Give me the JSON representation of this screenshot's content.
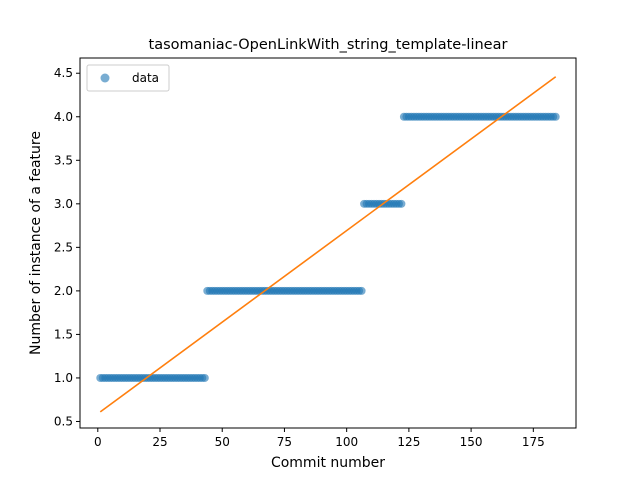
{
  "chart_data": {
    "type": "scatter",
    "title": "tasomaniac-OpenLinkWith_string_template-linear",
    "xlabel": "Commit number",
    "ylabel": "Number of instance of a feature",
    "xlim": [
      -7.15,
      192.15
    ],
    "ylim": [
      0.425,
      4.675
    ],
    "xticks": [
      0,
      25,
      50,
      75,
      100,
      125,
      150,
      175
    ],
    "yticks": [
      0.5,
      1.0,
      1.5,
      2.0,
      2.5,
      3.0,
      3.5,
      4.0,
      4.5
    ],
    "xtick_labels": [
      "0",
      "25",
      "50",
      "75",
      "100",
      "125",
      "150",
      "175"
    ],
    "ytick_labels": [
      "0.5",
      "1.0",
      "1.5",
      "2.0",
      "2.5",
      "3.0",
      "3.5",
      "4.0",
      "4.5"
    ],
    "grid": false,
    "legend": {
      "position": "top-left",
      "entries": [
        "data"
      ]
    },
    "series": [
      {
        "name": "data",
        "kind": "points",
        "color": "#1f77b4",
        "segments": [
          {
            "x_start": 1,
            "x_end": 43,
            "y": 1
          },
          {
            "x_start": 44,
            "x_end": 106,
            "y": 2
          },
          {
            "x_start": 107,
            "x_end": 122,
            "y": 3
          },
          {
            "x_start": 123,
            "x_end": 184,
            "y": 4
          }
        ]
      },
      {
        "kind": "line",
        "color": "#ff7f0e",
        "x": [
          1,
          184
        ],
        "y": [
          0.61,
          4.46
        ]
      }
    ]
  }
}
